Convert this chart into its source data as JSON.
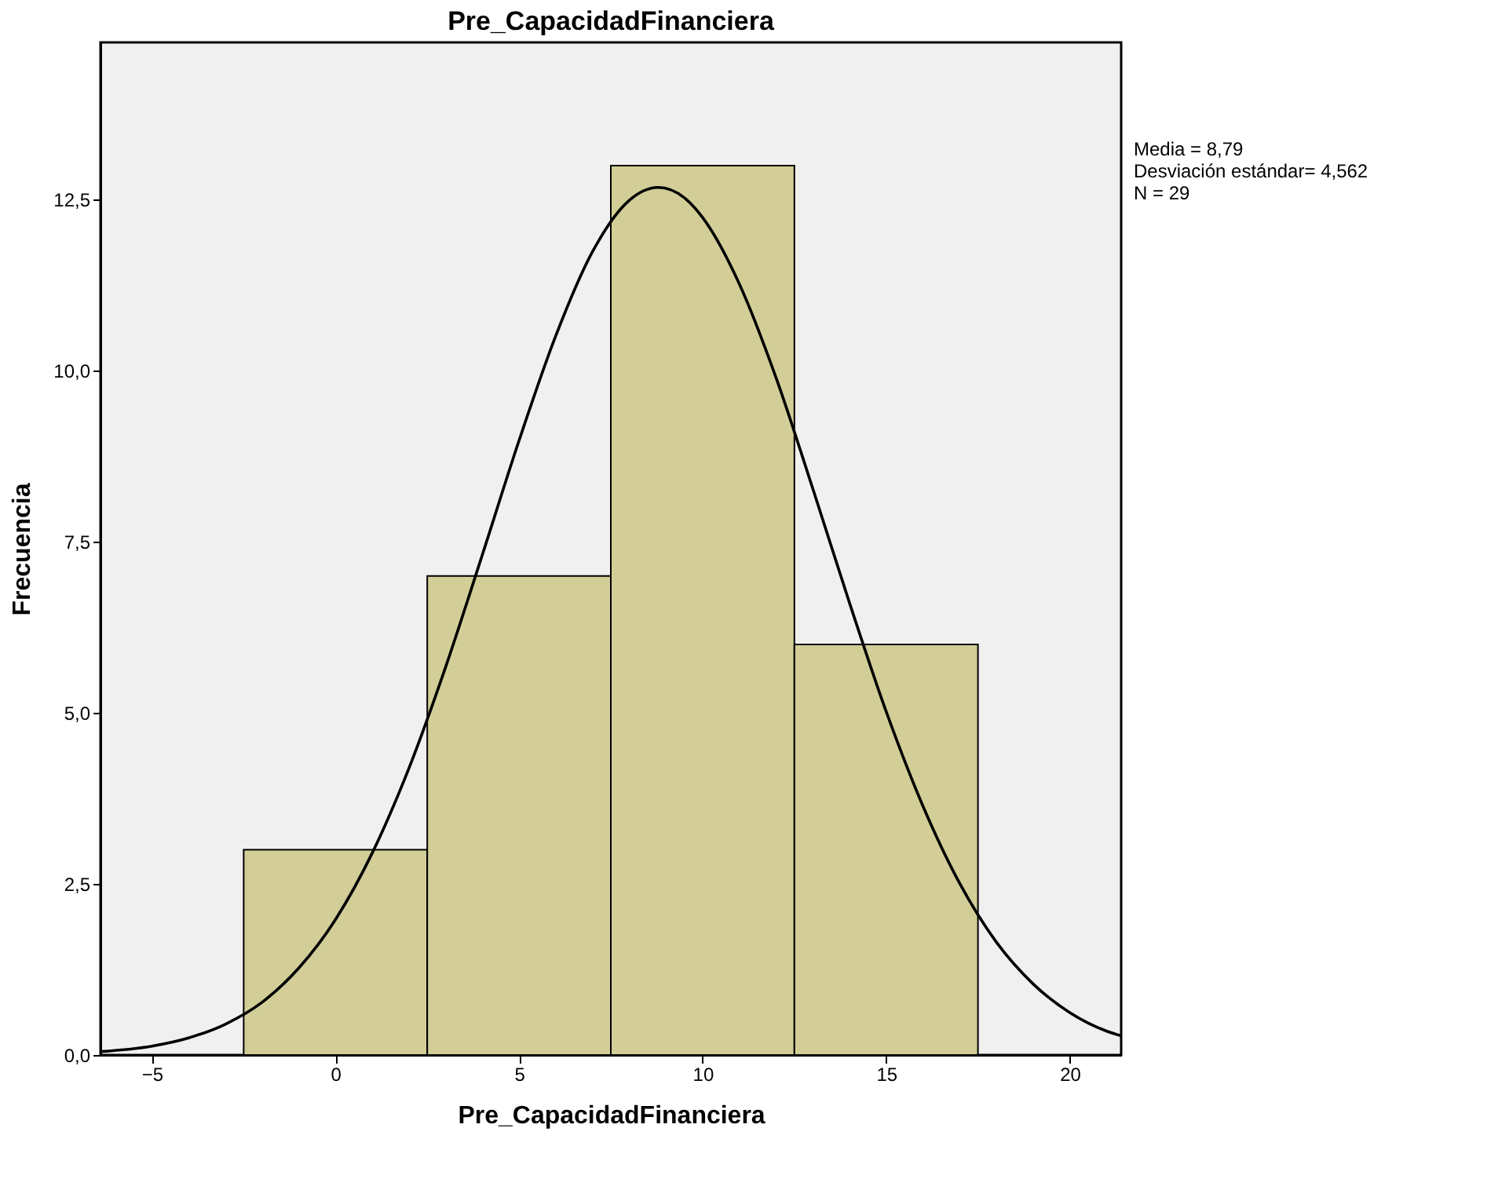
{
  "chart_data": {
    "type": "histogram",
    "title": "Pre_CapacidadFinanciera",
    "xlabel": "Pre_CapacidadFinanciera",
    "ylabel": "Frecuencia",
    "bins": [
      -2.5,
      2.5,
      7.5,
      12.5,
      17.5
    ],
    "values": [
      3,
      7,
      13,
      6
    ],
    "color": "#d3ce98",
    "series": [
      {
        "type": "line",
        "color": "#000000",
        "x": [
          -6.4,
          -5,
          -4,
          -3,
          -2,
          -1,
          0,
          1,
          2,
          3,
          4,
          5,
          6,
          7,
          8,
          8.79,
          9.5,
          10,
          11,
          12,
          13,
          14,
          15,
          16,
          17,
          18,
          19,
          20,
          21,
          21.4
        ],
        "values": [
          0.05,
          0.13,
          0.25,
          0.45,
          0.77,
          1.27,
          1.98,
          2.95,
          4.19,
          5.67,
          7.31,
          8.98,
          10.51,
          11.74,
          12.49,
          12.68,
          12.53,
          12.24,
          11.27,
          9.9,
          8.28,
          6.61,
          5.02,
          3.64,
          2.51,
          1.65,
          1.04,
          0.62,
          0.35,
          0.28
        ]
      }
    ],
    "xlim": [
      -6.4,
      21.4
    ],
    "ylim": [
      0,
      14.8
    ],
    "xticks": [
      -5,
      0,
      5,
      10,
      15,
      20
    ],
    "yticks": [
      {
        "value": 0,
        "label": "0,0"
      },
      {
        "value": 2.5,
        "label": "2,5"
      },
      {
        "value": 5,
        "label": "5,0"
      },
      {
        "value": 7.5,
        "label": "7,5"
      },
      {
        "value": 10,
        "label": "10,0"
      },
      {
        "value": 12.5,
        "label": "12,5"
      }
    ],
    "grid": false,
    "annotations": [
      "Media = 8,79",
      "Desviación estándar= 4,562",
      "N = 29"
    ]
  }
}
